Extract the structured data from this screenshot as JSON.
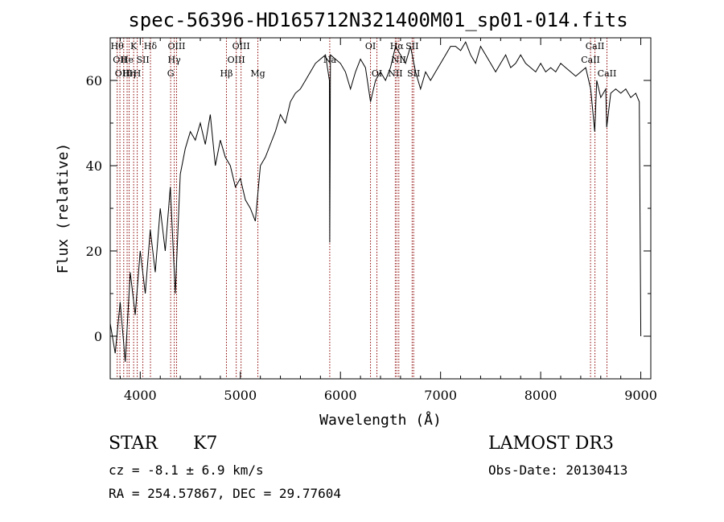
{
  "chart_data": {
    "type": "line",
    "title": "spec-56396-HD165712N321400M01_sp01-014.fits",
    "xlabel": "Wavelength (Å)",
    "ylabel": "Flux (relative)",
    "xlim": [
      3700,
      9100
    ],
    "ylim": [
      -10,
      70
    ],
    "xticks": [
      4000,
      5000,
      6000,
      7000,
      8000,
      9000
    ],
    "yticks": [
      0,
      20,
      40,
      60
    ],
    "grid": false,
    "series": [
      {
        "x": [
          3700,
          3750,
          3800,
          3850,
          3900,
          3950,
          4000,
          4050,
          4100,
          4150,
          4200,
          4250,
          4300,
          4350,
          4400,
          4450,
          4500,
          4550,
          4600,
          4650,
          4700,
          4750,
          4800,
          4850,
          4900,
          4950,
          5000,
          5050,
          5100,
          5150,
          5200,
          5250,
          5300,
          5350,
          5400,
          5450,
          5500,
          5550,
          5600,
          5650,
          5700,
          5750,
          5800,
          5850,
          5890,
          5893,
          5900,
          5950,
          6000,
          6050,
          6100,
          6150,
          6200,
          6250,
          6300,
          6350,
          6400,
          6450,
          6500,
          6550,
          6600,
          6650,
          6700,
          6750,
          6800,
          6850,
          6900,
          6950,
          7000,
          7050,
          7100,
          7150,
          7200,
          7250,
          7300,
          7350,
          7400,
          7450,
          7500,
          7550,
          7600,
          7650,
          7700,
          7750,
          7800,
          7850,
          7900,
          7950,
          8000,
          8050,
          8100,
          8150,
          8200,
          8250,
          8300,
          8350,
          8400,
          8450,
          8500,
          8540,
          8560,
          8600,
          8650,
          8660,
          8700,
          8750,
          8800,
          8850,
          8900,
          8950,
          8985,
          9000
        ],
        "y": [
          3,
          -4,
          8,
          -6,
          15,
          5,
          20,
          10,
          25,
          15,
          30,
          20,
          35,
          10,
          38,
          44,
          48,
          46,
          50,
          45,
          52,
          40,
          46,
          42,
          40,
          35,
          37,
          32,
          30,
          27,
          40,
          42,
          45,
          48,
          52,
          50,
          55,
          57,
          58,
          60,
          62,
          64,
          65,
          66,
          60,
          22,
          66,
          65,
          64,
          62,
          58,
          62,
          65,
          63,
          55,
          60,
          62,
          60,
          63,
          68,
          66,
          64,
          68,
          62,
          58,
          62,
          60,
          62,
          64,
          66,
          68,
          68,
          67,
          69,
          66,
          64,
          68,
          66,
          64,
          62,
          64,
          66,
          63,
          64,
          66,
          64,
          63,
          62,
          64,
          62,
          63,
          62,
          64,
          63,
          62,
          61,
          62,
          63,
          58,
          48,
          60,
          56,
          58,
          49,
          57,
          58,
          57,
          58,
          56,
          57,
          55,
          0
        ]
      }
    ],
    "spectral_lines": [
      {
        "wl": 3770,
        "label": "Hθ",
        "row": 1
      },
      {
        "wl": 3797,
        "label": "OII",
        "row": 2
      },
      {
        "wl": 3835,
        "label": "OIII",
        "row": 3
      },
      {
        "wl": 3869,
        "label": "He",
        "row": 2
      },
      {
        "wl": 3889,
        "label": "Hη",
        "row": 3
      },
      {
        "wl": 3934,
        "label": "K",
        "row": 1
      },
      {
        "wl": 3970,
        "label": "H",
        "row": 3
      },
      {
        "wl": 4026,
        "label": "SII",
        "row": 2
      },
      {
        "wl": 4102,
        "label": "Hδ",
        "row": 1
      },
      {
        "wl": 4304,
        "label": "G",
        "row": 3
      },
      {
        "wl": 4340,
        "label": "Hγ",
        "row": 2
      },
      {
        "wl": 4363,
        "label": "OIII",
        "row": 1
      },
      {
        "wl": 4861,
        "label": "Hβ",
        "row": 3
      },
      {
        "wl": 4959,
        "label": "OIII",
        "row": 2
      },
      {
        "wl": 5007,
        "label": "OIII",
        "row": 1
      },
      {
        "wl": 5175,
        "label": "Mg",
        "row": 3
      },
      {
        "wl": 5893,
        "label": "Na",
        "row": 2
      },
      {
        "wl": 6300,
        "label": "OI",
        "row": 1
      },
      {
        "wl": 6364,
        "label": "OI",
        "row": 3
      },
      {
        "wl": 6548,
        "label": "NII",
        "row": 3
      },
      {
        "wl": 6563,
        "label": "Hα",
        "row": 1
      },
      {
        "wl": 6583,
        "label": "NII",
        "row": 2
      },
      {
        "wl": 6716,
        "label": "SII",
        "row": 1
      },
      {
        "wl": 6731,
        "label": "SII",
        "row": 3
      },
      {
        "wl": 8498,
        "label": "CaII",
        "row": 2
      },
      {
        "wl": 8542,
        "label": "CaII",
        "row": 1
      },
      {
        "wl": 8662,
        "label": "CaII",
        "row": 3
      }
    ]
  },
  "info": {
    "class": "STAR",
    "subclass": "K7",
    "cz": "cz = -8.1 ± 6.9 km/s",
    "radec": "RA = 254.57867, DEC =  29.77604",
    "survey": "LAMOST DR3",
    "obsdate": "Obs-Date: 20130413"
  },
  "colors": {
    "line": "#000000",
    "marker": "#8b0000"
  }
}
